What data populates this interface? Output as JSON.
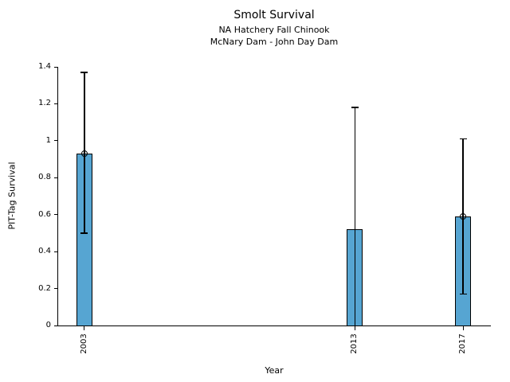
{
  "chart_data": {
    "type": "bar",
    "title": "Smolt Survival",
    "subtitle1": "NA Hatchery Fall Chinook",
    "subtitle2": "McNary Dam - John Day Dam",
    "xlabel": "Year",
    "ylabel": "PIT-Tag Survival",
    "categories": [
      "2003",
      "2013",
      "2017"
    ],
    "x": [
      2003,
      2013,
      2017
    ],
    "values": [
      0.93,
      0.52,
      0.59
    ],
    "error_low": [
      0.5,
      0.0,
      0.17
    ],
    "error_high": [
      1.37,
      1.18,
      1.01
    ],
    "marker_shown": [
      true,
      false,
      true
    ],
    "cap_low_shown": [
      true,
      false,
      true
    ],
    "cap_high_shown": [
      true,
      true,
      true
    ],
    "xlim": [
      2002,
      2018
    ],
    "ylim": [
      0,
      1.4
    ],
    "ytick_values": [
      0,
      0.2,
      0.4,
      0.6,
      0.8,
      1,
      1.2,
      1.4
    ],
    "ytick_labels": [
      "0",
      "0.2",
      "0.4",
      "0.6",
      "0.8",
      "1",
      "1.2",
      "1.4"
    ],
    "grid": false,
    "legend": "none",
    "bar_color": "#56a5d2",
    "bar_edge_color": "#000000",
    "error_color": "#000000",
    "text_color": "#000000"
  }
}
